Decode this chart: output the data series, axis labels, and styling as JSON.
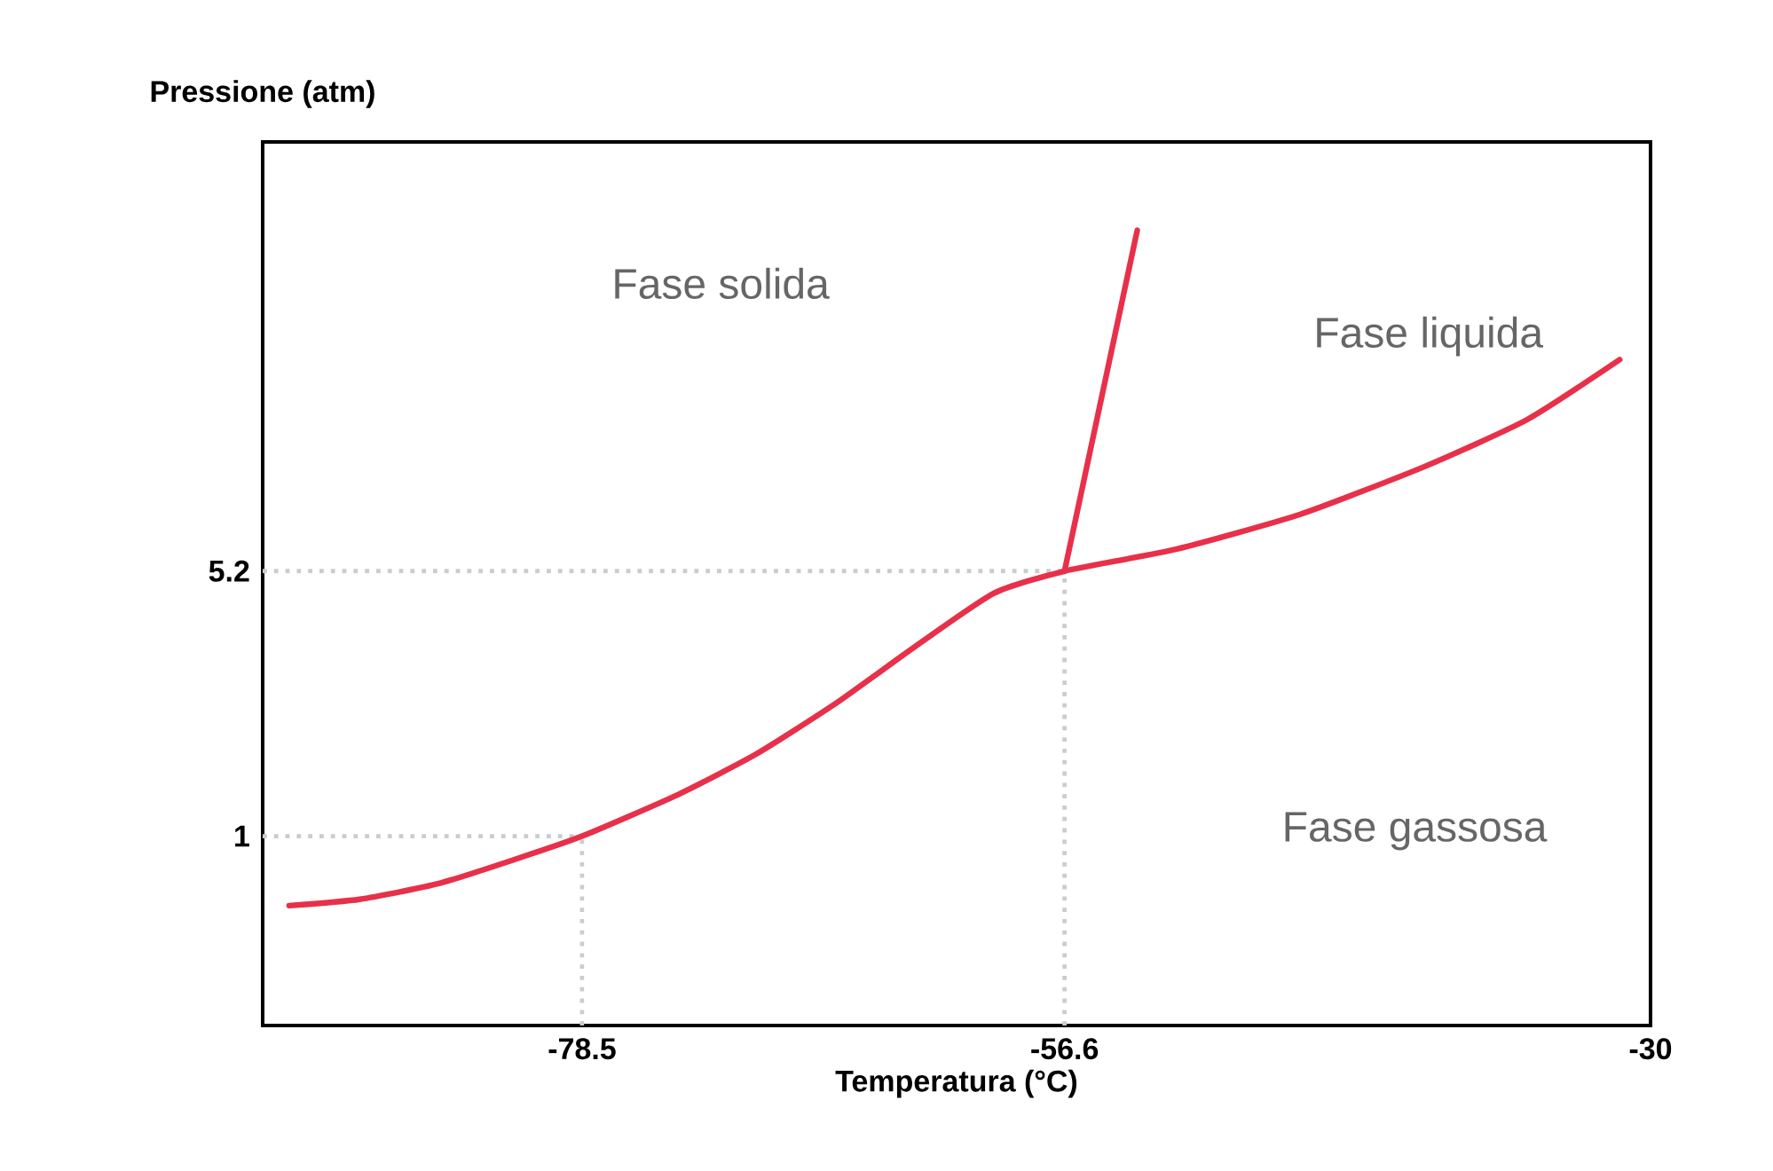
{
  "chart_data": {
    "type": "line",
    "xlabel": "Temperatura (°C)",
    "ylabel": "Pressione (atm)",
    "xlim": [
      -93,
      -30
    ],
    "ylim": [
      -2,
      12
    ],
    "xticks": [
      -78.5,
      -56.6,
      -30
    ],
    "yticks": [
      1,
      5.2
    ],
    "series": [
      {
        "color": "#e8304a",
        "x": [
          -91.8,
          -88.6,
          -85.0,
          -81.4,
          -78.5,
          -74.2,
          -70.6,
          -67.0,
          -63.4,
          -59.8,
          -56.6,
          -51.5,
          -45.9,
          -40.3,
          -35.6,
          -31.4
        ],
        "values": [
          -0.1,
          0.0,
          0.25,
          0.65,
          1,
          1.65,
          2.3,
          3.1,
          4.0,
          4.85,
          5.2,
          5.55,
          6.1,
          6.85,
          7.6,
          8.55
        ]
      },
      {
        "color": "#e8304a",
        "x": [
          -56.6,
          -53.3
        ],
        "values": [
          5.2,
          10.6
        ]
      }
    ],
    "ref_lines": [
      {
        "axis": "y",
        "value": 1,
        "color": "#cccccc",
        "line_style": "dotted"
      },
      {
        "axis": "y",
        "value": 5.2,
        "color": "#cccccc",
        "line_style": "dotted"
      },
      {
        "axis": "x",
        "value": -78.5,
        "color": "#cccccc",
        "line_style": "dotted"
      },
      {
        "axis": "x",
        "value": -56.6,
        "color": "#cccccc",
        "line_style": "dotted"
      }
    ],
    "annotations": [
      "Fase solida",
      "Fase liquida",
      "Fase gassosa"
    ],
    "grid": false,
    "line_style": "solid",
    "marker": "none"
  }
}
